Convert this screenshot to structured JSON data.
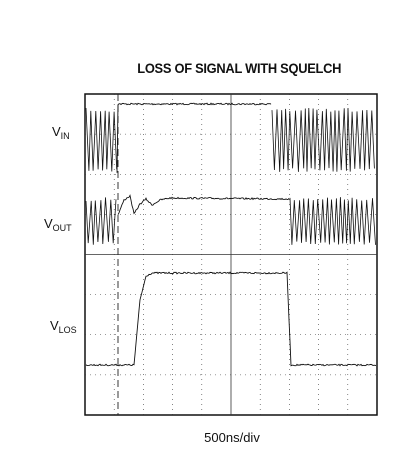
{
  "title": "LOSS OF SIGNAL WITH SQUELCH",
  "traces": [
    {
      "label": "V",
      "sub": "IN"
    },
    {
      "label": "V",
      "sub": "OUT"
    },
    {
      "label": "V",
      "sub": "LOS"
    }
  ],
  "x_label": "500ns/div"
}
